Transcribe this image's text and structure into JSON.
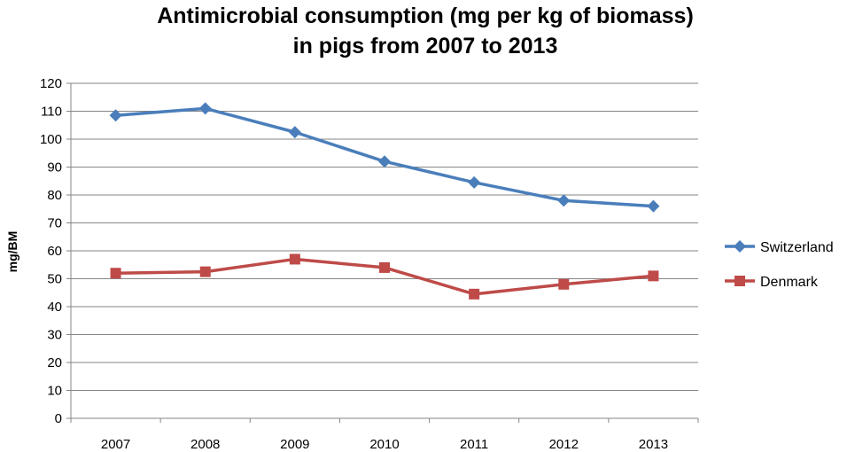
{
  "chart_data": {
    "type": "line",
    "title_lines": [
      "Antimicrobial consumption (mg per kg of biomass)",
      "in pigs from 2007 to 2013"
    ],
    "xlabel": "",
    "ylabel": "mg/BM",
    "categories": [
      "2007",
      "2008",
      "2009",
      "2010",
      "2011",
      "2012",
      "2013"
    ],
    "ylim": [
      0,
      120
    ],
    "yticks": [
      0,
      10,
      20,
      30,
      40,
      50,
      60,
      70,
      80,
      90,
      100,
      110,
      120
    ],
    "ytick_labels": [
      "0",
      "10",
      "20",
      "30",
      "40",
      "50",
      "60",
      "70",
      "80",
      "90",
      "100",
      "110",
      "120"
    ],
    "grid": true,
    "legend_position": "right",
    "series": [
      {
        "name": "Switzerland",
        "color": "#4a7ebb",
        "marker": "diamond",
        "values": [
          108.5,
          111,
          102.5,
          92,
          84.5,
          78,
          76
        ]
      },
      {
        "name": "Denmark",
        "color": "#be4b48",
        "marker": "square",
        "values": [
          52,
          52.5,
          57,
          54,
          44.5,
          48,
          51
        ]
      }
    ]
  }
}
